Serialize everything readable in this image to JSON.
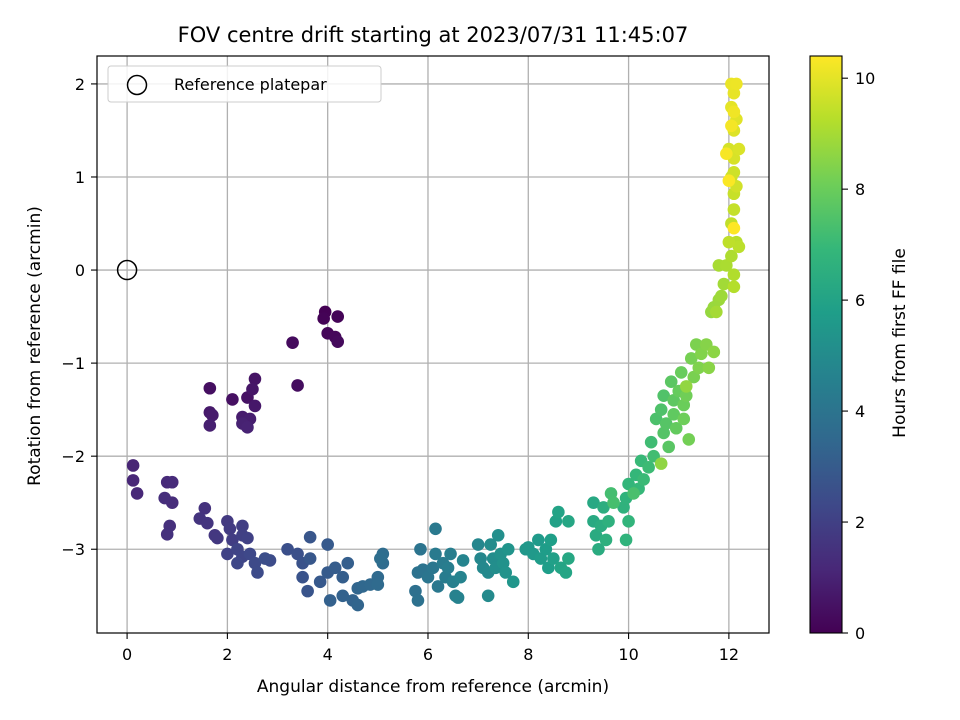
{
  "chart_data": {
    "type": "scatter",
    "title": "FOV centre drift starting at 2023/07/31 11:45:07",
    "xlabel": "Angular distance from reference (arcmin)",
    "ylabel": "Rotation from reference (arcmin)",
    "xlim": [
      -0.6,
      12.8
    ],
    "ylim": [
      -3.9,
      2.3
    ],
    "xticks": [
      0,
      2,
      4,
      6,
      8,
      10,
      12
    ],
    "yticks": [
      -3,
      -2,
      -1,
      0,
      1,
      2
    ],
    "grid": true,
    "legend": {
      "placement": "top-left",
      "entries": [
        "Reference platepar"
      ]
    },
    "reference_point": {
      "x": 0,
      "y": 0,
      "label": "Reference platepar"
    },
    "colorbar": {
      "label": "Hours from first FF file",
      "range": [
        0,
        10.4
      ],
      "ticks": [
        0,
        2,
        4,
        6,
        8,
        10
      ],
      "colormap": "viridis",
      "colors": [
        "#440154",
        "#482878",
        "#3e4989",
        "#31688e",
        "#26828e",
        "#1f9e89",
        "#35b779",
        "#6ece58",
        "#b5de2b",
        "#fde725"
      ]
    },
    "series": [
      {
        "name": "",
        "points": [
          [
            3.95,
            -0.45
          ],
          [
            3.92,
            -0.52
          ],
          [
            4.2,
            -0.5
          ],
          [
            4.0,
            -0.68
          ],
          [
            4.15,
            -0.72
          ],
          [
            4.2,
            -0.77
          ],
          [
            3.3,
            -0.78
          ],
          [
            3.4,
            -1.24
          ],
          [
            1.65,
            -1.27
          ],
          [
            2.1,
            -1.39
          ],
          [
            2.4,
            -1.37
          ],
          [
            2.55,
            -1.17
          ],
          [
            2.5,
            -1.28
          ],
          [
            2.55,
            -1.46
          ],
          [
            1.65,
            -1.53
          ],
          [
            1.7,
            -1.56
          ],
          [
            2.3,
            -1.58
          ],
          [
            2.45,
            -1.6
          ],
          [
            1.65,
            -1.67
          ],
          [
            2.3,
            -1.65
          ],
          [
            2.4,
            -1.69
          ],
          [
            0.12,
            -2.1
          ],
          [
            0.12,
            -2.26
          ],
          [
            0.2,
            -2.4
          ],
          [
            0.8,
            -2.28
          ],
          [
            0.9,
            -2.28
          ],
          [
            0.9,
            -2.5
          ],
          [
            0.75,
            -2.45
          ],
          [
            0.85,
            -2.75
          ],
          [
            0.8,
            -2.84
          ],
          [
            1.55,
            -2.56
          ],
          [
            1.45,
            -2.67
          ],
          [
            1.6,
            -2.72
          ],
          [
            1.75,
            -2.85
          ],
          [
            1.8,
            -2.88
          ],
          [
            2.0,
            -2.7
          ],
          [
            2.05,
            -2.78
          ],
          [
            2.1,
            -2.9
          ],
          [
            2.3,
            -2.75
          ],
          [
            2.3,
            -2.85
          ],
          [
            2.4,
            -2.88
          ],
          [
            2.0,
            -3.05
          ],
          [
            2.2,
            -3.0
          ],
          [
            2.3,
            -3.08
          ],
          [
            2.2,
            -3.15
          ],
          [
            2.45,
            -3.05
          ],
          [
            2.55,
            -3.15
          ],
          [
            2.6,
            -3.25
          ],
          [
            2.85,
            -3.12
          ],
          [
            2.75,
            -3.1
          ],
          [
            3.2,
            -3.0
          ],
          [
            3.4,
            -3.05
          ],
          [
            3.5,
            -3.15
          ],
          [
            3.5,
            -3.3
          ],
          [
            3.6,
            -3.45
          ],
          [
            3.65,
            -2.87
          ],
          [
            3.65,
            -3.1
          ],
          [
            3.85,
            -3.35
          ],
          [
            4.0,
            -2.95
          ],
          [
            4.0,
            -3.25
          ],
          [
            4.15,
            -3.2
          ],
          [
            4.3,
            -3.3
          ],
          [
            4.4,
            -3.15
          ],
          [
            4.05,
            -3.55
          ],
          [
            4.3,
            -3.5
          ],
          [
            4.5,
            -3.55
          ],
          [
            4.6,
            -3.6
          ],
          [
            4.6,
            -3.42
          ],
          [
            4.7,
            -3.4
          ],
          [
            4.85,
            -3.38
          ],
          [
            5.0,
            -3.3
          ],
          [
            5.0,
            -3.38
          ],
          [
            5.1,
            -3.15
          ],
          [
            5.1,
            -3.05
          ],
          [
            5.05,
            -3.1
          ],
          [
            5.75,
            -3.45
          ],
          [
            5.8,
            -3.55
          ],
          [
            5.8,
            -3.25
          ],
          [
            5.9,
            -3.22
          ],
          [
            5.85,
            -3.0
          ],
          [
            6.0,
            -3.3
          ],
          [
            6.1,
            -3.2
          ],
          [
            6.2,
            -3.4
          ],
          [
            6.15,
            -2.78
          ],
          [
            6.15,
            -3.05
          ],
          [
            6.3,
            -3.15
          ],
          [
            6.35,
            -3.3
          ],
          [
            6.4,
            -3.2
          ],
          [
            6.45,
            -3.05
          ],
          [
            6.5,
            -3.35
          ],
          [
            6.55,
            -3.5
          ],
          [
            6.6,
            -3.52
          ],
          [
            6.65,
            -3.3
          ],
          [
            6.7,
            -3.12
          ],
          [
            7.0,
            -2.95
          ],
          [
            7.05,
            -3.1
          ],
          [
            7.1,
            -3.2
          ],
          [
            7.2,
            -3.25
          ],
          [
            7.2,
            -3.5
          ],
          [
            7.25,
            -2.95
          ],
          [
            7.3,
            -3.1
          ],
          [
            7.35,
            -3.2
          ],
          [
            7.4,
            -2.85
          ],
          [
            7.45,
            -3.05
          ],
          [
            7.5,
            -3.15
          ],
          [
            7.55,
            -3.25
          ],
          [
            7.6,
            -3.0
          ],
          [
            7.7,
            -3.35
          ],
          [
            7.95,
            -3.0
          ],
          [
            8.0,
            -2.98
          ],
          [
            8.1,
            -3.05
          ],
          [
            8.2,
            -2.9
          ],
          [
            8.25,
            -3.1
          ],
          [
            8.35,
            -3.0
          ],
          [
            8.4,
            -3.2
          ],
          [
            8.45,
            -2.9
          ],
          [
            8.5,
            -3.1
          ],
          [
            8.55,
            -2.7
          ],
          [
            8.6,
            -2.6
          ],
          [
            8.65,
            -3.2
          ],
          [
            8.75,
            -3.25
          ],
          [
            8.8,
            -2.7
          ],
          [
            8.8,
            -3.1
          ],
          [
            9.3,
            -2.5
          ],
          [
            9.3,
            -2.7
          ],
          [
            9.35,
            -2.85
          ],
          [
            9.4,
            -3.0
          ],
          [
            9.45,
            -2.75
          ],
          [
            9.5,
            -2.55
          ],
          [
            9.55,
            -2.9
          ],
          [
            9.6,
            -2.7
          ],
          [
            9.9,
            -2.55
          ],
          [
            9.95,
            -2.45
          ],
          [
            9.95,
            -2.9
          ],
          [
            10.0,
            -2.7
          ],
          [
            10.0,
            -2.3
          ],
          [
            10.15,
            -2.2
          ],
          [
            10.2,
            -2.35
          ],
          [
            10.25,
            -2.05
          ],
          [
            10.3,
            -2.25
          ],
          [
            10.4,
            -2.12
          ],
          [
            10.45,
            -1.85
          ],
          [
            10.5,
            -2.0
          ],
          [
            9.65,
            -2.4
          ],
          [
            9.7,
            -2.5
          ],
          [
            10.1,
            -2.4
          ],
          [
            10.55,
            -1.6
          ],
          [
            10.65,
            -1.5
          ],
          [
            10.7,
            -1.35
          ],
          [
            10.7,
            -1.75
          ],
          [
            10.75,
            -1.65
          ],
          [
            10.8,
            -1.9
          ],
          [
            10.85,
            -1.2
          ],
          [
            10.9,
            -1.4
          ],
          [
            10.9,
            -1.55
          ],
          [
            10.95,
            -1.7
          ],
          [
            11.0,
            -1.3
          ],
          [
            11.05,
            -1.1
          ],
          [
            11.1,
            -1.45
          ],
          [
            11.1,
            -1.6
          ],
          [
            11.15,
            -1.35
          ],
          [
            11.2,
            -1.82
          ],
          [
            11.25,
            -0.95
          ],
          [
            11.3,
            -1.15
          ],
          [
            11.35,
            -0.8
          ],
          [
            11.4,
            -1.05
          ],
          [
            11.45,
            -0.9
          ],
          [
            11.55,
            -0.8
          ],
          [
            11.6,
            -1.05
          ],
          [
            11.7,
            -0.88
          ],
          [
            10.65,
            -2.08
          ],
          [
            11.15,
            -1.25
          ],
          [
            11.65,
            -0.45
          ],
          [
            11.7,
            -0.4
          ],
          [
            11.8,
            -0.32
          ],
          [
            11.85,
            -0.28
          ],
          [
            11.9,
            -0.15
          ],
          [
            11.75,
            -0.45
          ],
          [
            11.8,
            0.05
          ],
          [
            11.95,
            0.05
          ],
          [
            12.05,
            0.15
          ],
          [
            12.1,
            -0.05
          ],
          [
            12.1,
            -0.18
          ],
          [
            12.15,
            0.3
          ],
          [
            12.2,
            0.25
          ],
          [
            12.0,
            0.3
          ],
          [
            12.05,
            0.5
          ],
          [
            12.1,
            0.65
          ],
          [
            12.1,
            0.82
          ],
          [
            12.05,
            1.0
          ],
          [
            12.1,
            1.05
          ],
          [
            12.15,
            0.9
          ],
          [
            12.0,
            1.3
          ],
          [
            12.1,
            1.2
          ],
          [
            12.2,
            1.3
          ],
          [
            12.1,
            1.5
          ],
          [
            12.15,
            1.62
          ],
          [
            12.05,
            1.75
          ],
          [
            12.1,
            1.9
          ],
          [
            12.05,
            2.0
          ],
          [
            12.15,
            2.0
          ],
          [
            12.1,
            1.7
          ],
          [
            12.05,
            1.55
          ],
          [
            11.95,
            1.25
          ],
          [
            12.0,
            0.96
          ],
          [
            12.1,
            0.45
          ]
        ]
      }
    ]
  }
}
